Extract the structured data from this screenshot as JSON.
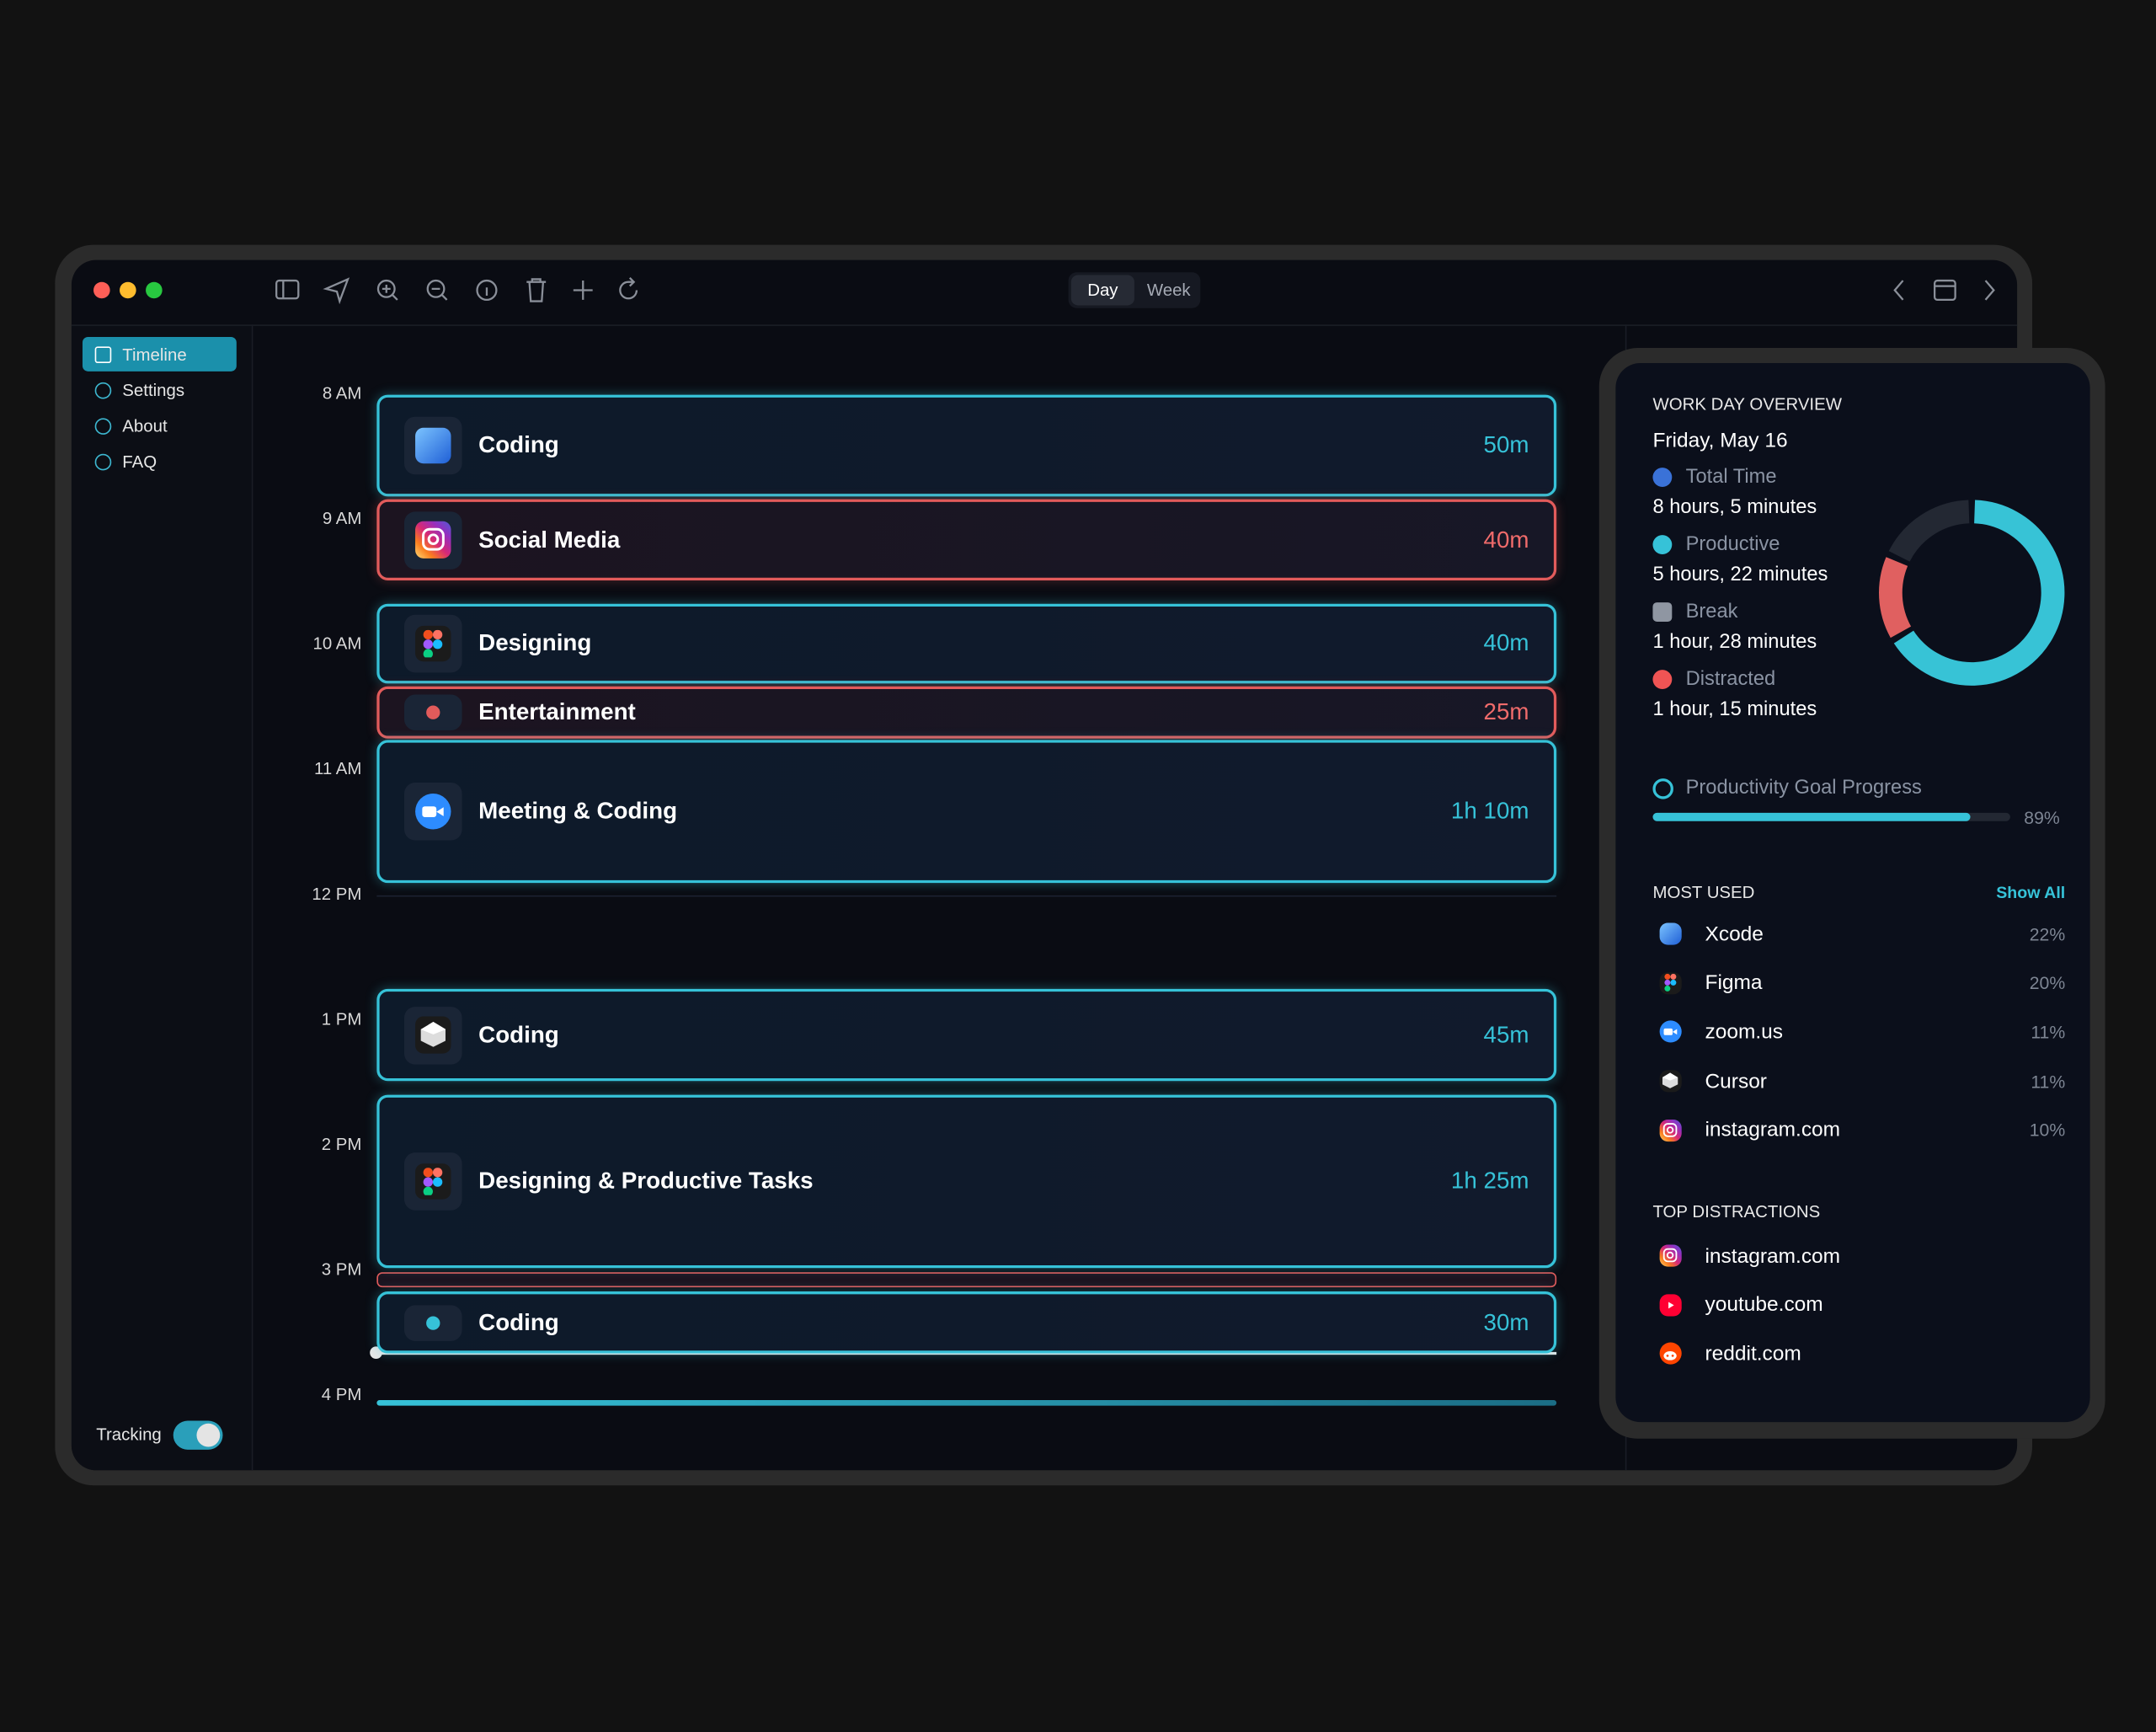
{
  "window": {
    "tabs": [
      "Day",
      "Week"
    ],
    "active_tab": 0
  },
  "sidebar": {
    "items": [
      "Timeline",
      "Settings",
      "About",
      "FAQ"
    ],
    "active": 0,
    "tracking_label": "Tracking",
    "tracking_on": true
  },
  "timeline": {
    "hours": [
      "8 AM",
      "9 AM",
      "10 AM",
      "11 AM",
      "12 PM",
      "1 PM",
      "2 PM",
      "3 PM",
      "4 PM"
    ],
    "events": [
      {
        "title": "Coding",
        "duration": "50m",
        "kind": "productive",
        "icon": "xcode"
      },
      {
        "title": "Social Media",
        "duration": "40m",
        "kind": "distracted",
        "icon": "instagram"
      },
      {
        "title": "Designing",
        "duration": "40m",
        "kind": "productive",
        "icon": "figma"
      },
      {
        "title": "Entertainment",
        "duration": "25m",
        "kind": "distracted",
        "icon": "dot"
      },
      {
        "title": "Meeting & Coding",
        "duration": "1h 10m",
        "kind": "productive",
        "icon": "zoom"
      },
      {
        "title": "Coding",
        "duration": "45m",
        "kind": "productive",
        "icon": "cursor"
      },
      {
        "title": "Designing & Productive Tasks",
        "duration": "1h 25m",
        "kind": "productive",
        "icon": "figma"
      },
      {
        "title": "Coding",
        "duration": "30m",
        "kind": "productive",
        "icon": "dot"
      }
    ]
  },
  "overview": {
    "heading": "WORK DAY OVERVIEW",
    "date": "Friday, May 16",
    "stats": [
      {
        "label": "Total Time",
        "value": "8 hours, 5 minutes"
      },
      {
        "label": "Productive",
        "value": "5 hours, 22 minutes"
      },
      {
        "label": "Break",
        "value": "1 hour, 28 minutes"
      },
      {
        "label": "Distracted",
        "value": "1 hour, 15 minutes"
      }
    ],
    "donut": [
      {
        "value": 322,
        "color": "#37c3d6"
      },
      {
        "value": 75,
        "color": "#e06060"
      },
      {
        "value": 88,
        "color": "#232833"
      }
    ],
    "goal": {
      "label": "Productivity Goal Progress",
      "value": 89,
      "value_label": "89%"
    },
    "most_used": {
      "heading": "MOST USED",
      "action": "Show All",
      "apps": [
        {
          "name": "Xcode",
          "share": "22%",
          "icon": "xcode"
        },
        {
          "name": "Figma",
          "share": "20%",
          "icon": "figma"
        },
        {
          "name": "zoom.us",
          "share": "11%",
          "icon": "zoom"
        },
        {
          "name": "Cursor",
          "share": "11%",
          "icon": "cursor"
        },
        {
          "name": "instagram.com",
          "share": "10%",
          "icon": "instagram"
        }
      ]
    },
    "distractions": {
      "heading": "TOP DISTRACTIONS",
      "apps": [
        {
          "name": "instagram.com",
          "icon": "instagram"
        },
        {
          "name": "youtube.com",
          "icon": "youtube"
        },
        {
          "name": "reddit.com",
          "icon": "reddit"
        }
      ]
    }
  }
}
